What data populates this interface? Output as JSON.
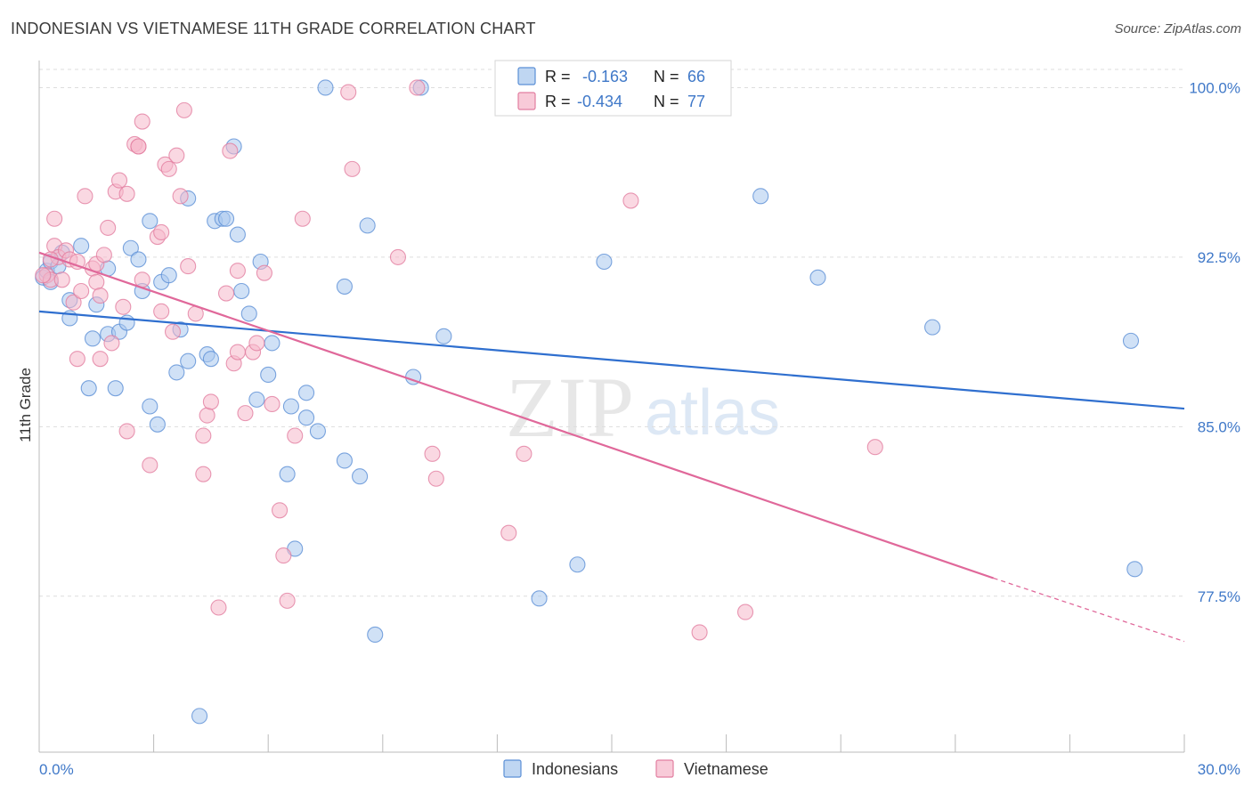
{
  "title": "INDONESIAN VS VIETNAMESE 11TH GRADE CORRELATION CHART",
  "source": "Source: ZipAtlas.com",
  "watermark": {
    "zip": "ZIP",
    "atlas": "atlas"
  },
  "colors": {
    "indonesians_fill": "#aac8ee",
    "indonesians_stroke": "#5b8fd6",
    "indonesians_line": "#2f6fcf",
    "vietnamese_fill": "#f6b8cb",
    "vietnamese_stroke": "#e27ea0",
    "vietnamese_line": "#e0689a",
    "tick_label": "#3f78c8",
    "grid": "#dddddd"
  },
  "legend": {
    "rows": [
      {
        "r_label": "R =",
        "r_value": "-0.163",
        "n_label": "N =",
        "n_value": "66"
      },
      {
        "r_label": "R =",
        "r_value": "-0.434",
        "n_label": "N =",
        "n_value": "77"
      }
    ]
  },
  "bottom_legend": [
    "Indonesians",
    "Vietnamese"
  ],
  "chart_data": {
    "type": "scatter",
    "title": "INDONESIAN VS VIETNAMESE 11TH GRADE CORRELATION CHART",
    "xlabel": "",
    "ylabel": "11th Grade",
    "xlim": [
      0,
      30
    ],
    "ylim": [
      70.6,
      101.2
    ],
    "x_tick_labels": [
      "0.0%",
      "30.0%"
    ],
    "y_ticks": [
      77.5,
      85.0,
      92.5,
      100.0
    ],
    "y_tick_labels": [
      "77.5%",
      "85.0%",
      "92.5%",
      "100.0%"
    ],
    "grid": "horizontal dashed",
    "legend_position": "top-center",
    "series": [
      {
        "name": "Indonesians",
        "r": -0.163,
        "n": 66,
        "trend": {
          "x": [
            0,
            30
          ],
          "y": [
            90.1,
            85.8
          ]
        },
        "points": [
          [
            0.1,
            91.6
          ],
          [
            0.2,
            91.9
          ],
          [
            0.3,
            92.3
          ],
          [
            0.3,
            91.4
          ],
          [
            0.5,
            92.1
          ],
          [
            0.6,
            92.7
          ],
          [
            0.8,
            90.6
          ],
          [
            0.8,
            89.8
          ],
          [
            1.1,
            93.0
          ],
          [
            1.3,
            86.7
          ],
          [
            1.4,
            88.9
          ],
          [
            1.5,
            90.4
          ],
          [
            1.8,
            89.1
          ],
          [
            1.8,
            92.0
          ],
          [
            2.0,
            86.7
          ],
          [
            2.1,
            89.2
          ],
          [
            2.3,
            89.6
          ],
          [
            2.4,
            92.9
          ],
          [
            2.6,
            92.4
          ],
          [
            2.7,
            91.0
          ],
          [
            2.9,
            94.1
          ],
          [
            2.9,
            85.9
          ],
          [
            3.1,
            85.1
          ],
          [
            3.2,
            91.4
          ],
          [
            3.4,
            91.7
          ],
          [
            3.6,
            87.4
          ],
          [
            3.7,
            89.3
          ],
          [
            3.9,
            87.9
          ],
          [
            3.9,
            95.1
          ],
          [
            4.2,
            72.2
          ],
          [
            4.4,
            88.2
          ],
          [
            4.5,
            88.0
          ],
          [
            4.6,
            94.1
          ],
          [
            4.8,
            94.2
          ],
          [
            4.9,
            94.2
          ],
          [
            5.1,
            97.4
          ],
          [
            5.2,
            93.5
          ],
          [
            5.3,
            91.0
          ],
          [
            5.5,
            90.0
          ],
          [
            5.7,
            86.2
          ],
          [
            5.8,
            92.3
          ],
          [
            6.0,
            87.3
          ],
          [
            6.1,
            88.7
          ],
          [
            6.5,
            82.9
          ],
          [
            6.6,
            85.9
          ],
          [
            6.7,
            79.6
          ],
          [
            7.0,
            86.5
          ],
          [
            7.0,
            85.4
          ],
          [
            7.3,
            84.8
          ],
          [
            7.5,
            100.0
          ],
          [
            8.0,
            91.2
          ],
          [
            8.0,
            83.5
          ],
          [
            8.4,
            82.8
          ],
          [
            8.6,
            93.9
          ],
          [
            8.8,
            75.8
          ],
          [
            9.8,
            87.2
          ],
          [
            10.0,
            100.0
          ],
          [
            10.6,
            89.0
          ],
          [
            13.1,
            77.4
          ],
          [
            14.1,
            78.9
          ],
          [
            14.8,
            92.3
          ],
          [
            18.9,
            95.2
          ],
          [
            20.4,
            91.6
          ],
          [
            23.4,
            89.4
          ],
          [
            28.6,
            88.8
          ],
          [
            28.7,
            78.7
          ]
        ]
      },
      {
        "name": "Vietnamese",
        "r": -0.434,
        "n": 77,
        "trend": {
          "x": [
            0,
            25
          ],
          "y": [
            92.7,
            78.3
          ],
          "dashed_to": {
            "x": 30,
            "y": 75.5
          }
        },
        "points": [
          [
            0.2,
            91.7
          ],
          [
            0.3,
            91.5
          ],
          [
            0.4,
            93.0
          ],
          [
            0.4,
            94.2
          ],
          [
            0.5,
            92.5
          ],
          [
            0.6,
            91.5
          ],
          [
            0.7,
            92.8
          ],
          [
            0.8,
            92.4
          ],
          [
            0.9,
            90.5
          ],
          [
            1.0,
            88.0
          ],
          [
            1.0,
            92.3
          ],
          [
            1.1,
            91.0
          ],
          [
            1.2,
            95.2
          ],
          [
            1.4,
            92.0
          ],
          [
            1.5,
            91.4
          ],
          [
            1.5,
            92.2
          ],
          [
            1.6,
            90.8
          ],
          [
            1.6,
            88.0
          ],
          [
            1.7,
            92.6
          ],
          [
            1.8,
            93.8
          ],
          [
            1.9,
            88.7
          ],
          [
            2.0,
            95.4
          ],
          [
            2.1,
            95.9
          ],
          [
            2.2,
            90.3
          ],
          [
            2.3,
            95.3
          ],
          [
            2.3,
            84.8
          ],
          [
            2.5,
            97.5
          ],
          [
            2.6,
            97.4
          ],
          [
            2.7,
            91.5
          ],
          [
            2.7,
            98.5
          ],
          [
            2.9,
            83.3
          ],
          [
            3.1,
            93.4
          ],
          [
            3.2,
            93.6
          ],
          [
            3.2,
            90.1
          ],
          [
            3.3,
            96.6
          ],
          [
            3.4,
            96.4
          ],
          [
            3.5,
            89.2
          ],
          [
            3.6,
            97.0
          ],
          [
            3.7,
            95.2
          ],
          [
            3.8,
            99.0
          ],
          [
            3.9,
            92.1
          ],
          [
            4.1,
            90.0
          ],
          [
            4.3,
            82.9
          ],
          [
            4.3,
            84.6
          ],
          [
            4.4,
            85.5
          ],
          [
            4.5,
            86.1
          ],
          [
            4.7,
            77.0
          ],
          [
            4.9,
            90.9
          ],
          [
            5.0,
            97.2
          ],
          [
            5.1,
            87.8
          ],
          [
            5.2,
            88.3
          ],
          [
            5.2,
            91.9
          ],
          [
            5.4,
            85.6
          ],
          [
            5.6,
            88.3
          ],
          [
            5.7,
            88.7
          ],
          [
            5.9,
            91.8
          ],
          [
            6.1,
            86.0
          ],
          [
            6.3,
            81.3
          ],
          [
            6.4,
            79.3
          ],
          [
            6.5,
            77.3
          ],
          [
            6.7,
            84.6
          ],
          [
            6.9,
            94.2
          ],
          [
            8.1,
            99.8
          ],
          [
            8.2,
            96.4
          ],
          [
            9.4,
            92.5
          ],
          [
            9.9,
            100.0
          ],
          [
            10.3,
            83.8
          ],
          [
            10.4,
            82.7
          ],
          [
            12.3,
            80.3
          ],
          [
            12.7,
            83.8
          ],
          [
            15.5,
            95.0
          ],
          [
            17.3,
            75.9
          ],
          [
            18.5,
            76.8
          ],
          [
            21.9,
            84.1
          ],
          [
            0.1,
            91.7
          ],
          [
            0.3,
            92.4
          ],
          [
            2.6,
            97.4
          ]
        ]
      }
    ]
  }
}
